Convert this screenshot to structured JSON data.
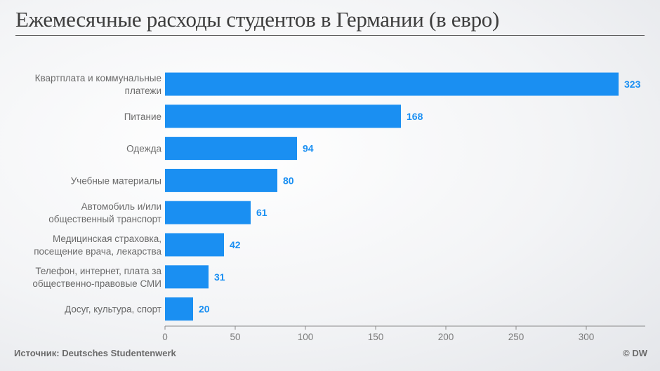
{
  "title": "Ежемесячные расходы студентов в Германии (в евро)",
  "footer": {
    "source": "Источник: Deutsches Studentenwerk",
    "brand": "© DW"
  },
  "colors": {
    "bar": "#1a8ff2",
    "value_label": "#1a8ff2",
    "axis": "#8a8a8a",
    "category_text": "#6a6a6a",
    "tick_text": "#7a7a7a"
  },
  "chart_data": {
    "type": "bar",
    "orientation": "horizontal",
    "title": "Ежемесячные расходы студентов в Германии (в евро)",
    "categories": [
      [
        "Квартплата и коммунальные",
        "платежи"
      ],
      [
        "Питание"
      ],
      [
        "Одежда"
      ],
      [
        "Учебные материалы"
      ],
      [
        "Автомобиль и/или",
        "общественный транспорт"
      ],
      [
        "Медицинская страховка,",
        "посещение врача, лекарства"
      ],
      [
        "Телефон, интернет, плата за",
        "общественно-правовые СМИ"
      ],
      [
        "Досуг, культура, спорт"
      ]
    ],
    "values": [
      323,
      168,
      94,
      80,
      61,
      42,
      31,
      20
    ],
    "xlim": [
      0,
      342
    ],
    "xticks": [
      0,
      50,
      100,
      150,
      200,
      250,
      300
    ],
    "xlabel": "",
    "ylabel": "",
    "grid": false,
    "legend": "none"
  }
}
